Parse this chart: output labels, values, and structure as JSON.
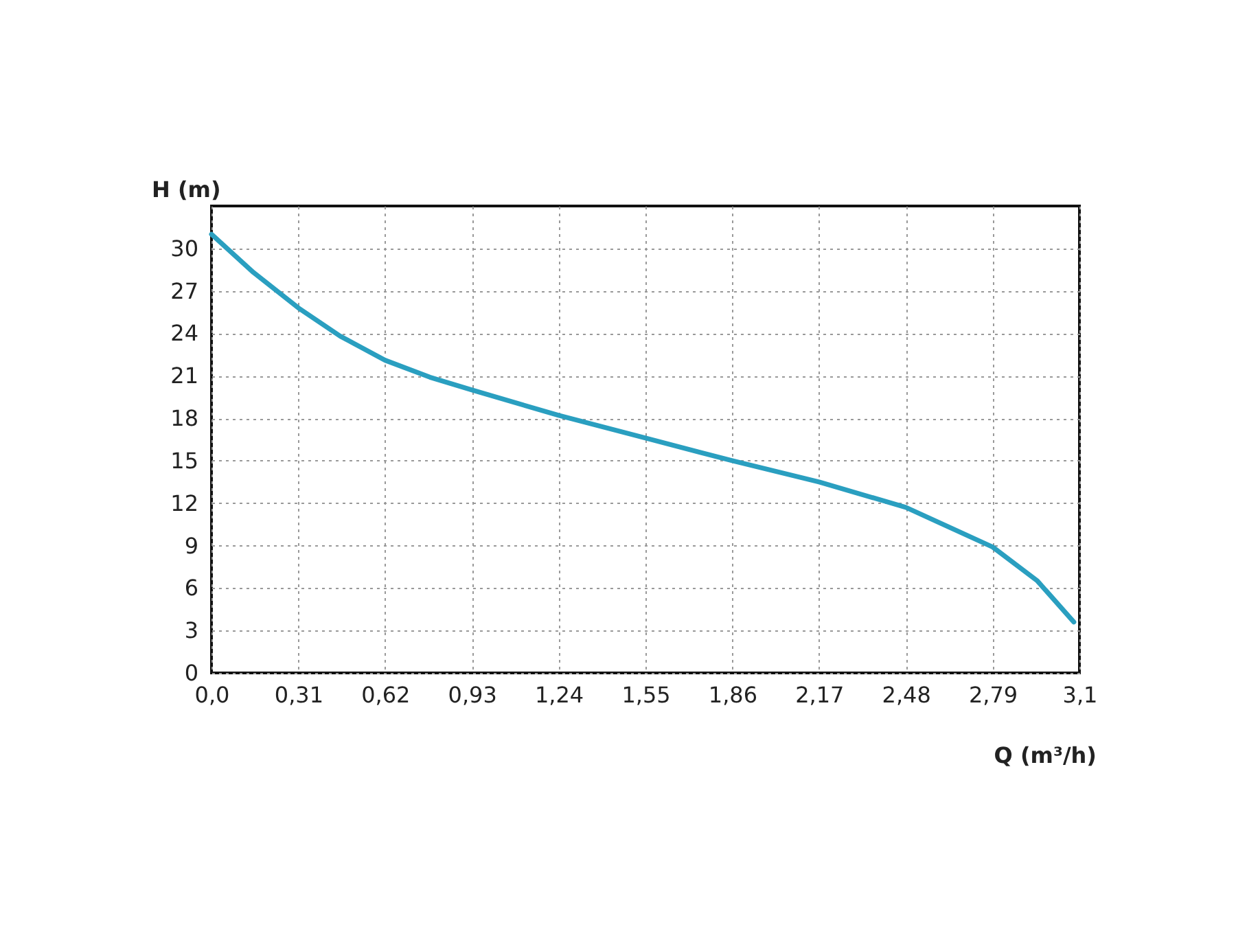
{
  "chart_data": {
    "type": "line",
    "xlabel": "Q (m³/h)",
    "ylabel": "H (m)",
    "x": [
      0,
      0.15,
      0.31,
      0.46,
      0.62,
      0.78,
      0.93,
      1.24,
      1.55,
      1.86,
      2.17,
      2.48,
      2.79,
      2.95,
      3.08
    ],
    "series": [
      {
        "color": "#2a9fc0",
        "values": [
          31.0,
          28.3,
          25.8,
          23.8,
          22.1,
          20.9,
          20.0,
          18.2,
          16.6,
          15.0,
          13.5,
          11.7,
          8.9,
          6.5,
          3.6
        ]
      }
    ],
    "xlim": [
      0,
      3.1
    ],
    "ylim": [
      0,
      33
    ],
    "xticks": [
      {
        "value": 0,
        "label": "0,0"
      },
      {
        "value": 0.31,
        "label": "0,31"
      },
      {
        "value": 0.62,
        "label": "0,62"
      },
      {
        "value": 0.93,
        "label": "0,93"
      },
      {
        "value": 1.24,
        "label": "1,24"
      },
      {
        "value": 1.55,
        "label": "1,55"
      },
      {
        "value": 1.86,
        "label": "1,86"
      },
      {
        "value": 2.17,
        "label": "2,17"
      },
      {
        "value": 2.48,
        "label": "2,48"
      },
      {
        "value": 2.79,
        "label": "2,79"
      },
      {
        "value": 3.1,
        "label": "3,1"
      }
    ],
    "yticks": [
      0,
      3,
      6,
      9,
      12,
      15,
      18,
      21,
      24,
      27,
      30
    ],
    "grid": true,
    "line_style": "solid",
    "marker": "none"
  }
}
